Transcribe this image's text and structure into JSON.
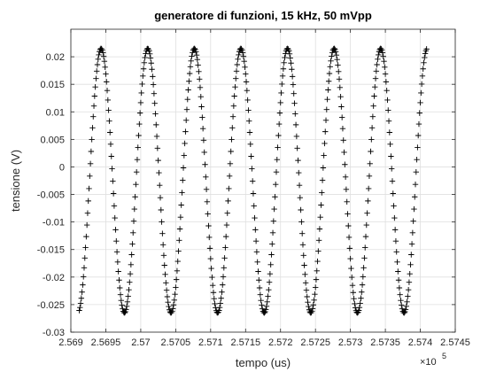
{
  "chart_data": {
    "type": "scatter",
    "title": "generatore di funzioni, 15 kHz, 50 mVpp",
    "xlabel": "tempo (us)",
    "ylabel": "tensione (V)",
    "x_exponent_label": "×10",
    "x_exponent_power": "5",
    "xlim": [
      256900,
      257450
    ],
    "ylim": [
      -0.03,
      0.025
    ],
    "x_ticks": [
      256900,
      256950,
      257000,
      257050,
      257100,
      257150,
      257200,
      257250,
      257300,
      257350,
      257400,
      257450
    ],
    "x_tick_labels": [
      "2.569",
      "2.5695",
      "2.57",
      "2.5705",
      "2.571",
      "2.5715",
      "2.572",
      "2.5725",
      "2.573",
      "2.5735",
      "2.574",
      "2.5745"
    ],
    "y_ticks": [
      -0.03,
      -0.025,
      -0.02,
      -0.015,
      -0.01,
      -0.005,
      0,
      0.005,
      0.01,
      0.015,
      0.02
    ],
    "y_tick_labels": [
      "-0.03",
      "-0.025",
      "-0.02",
      "-0.015",
      "-0.01",
      "-0.005",
      "0",
      "0.005",
      "0.01",
      "0.015",
      "0.02"
    ],
    "grid": true,
    "marker": "+",
    "marker_color": "#000000",
    "signal": {
      "waveform": "sine",
      "frequency_hz": 15000,
      "offset_v": -0.0025,
      "amplitude_v": 0.024,
      "first_peak_time_us": 256943.3,
      "sample_interval_us": 1,
      "t_start_us": 256912,
      "t_end_us": 257409
    }
  }
}
